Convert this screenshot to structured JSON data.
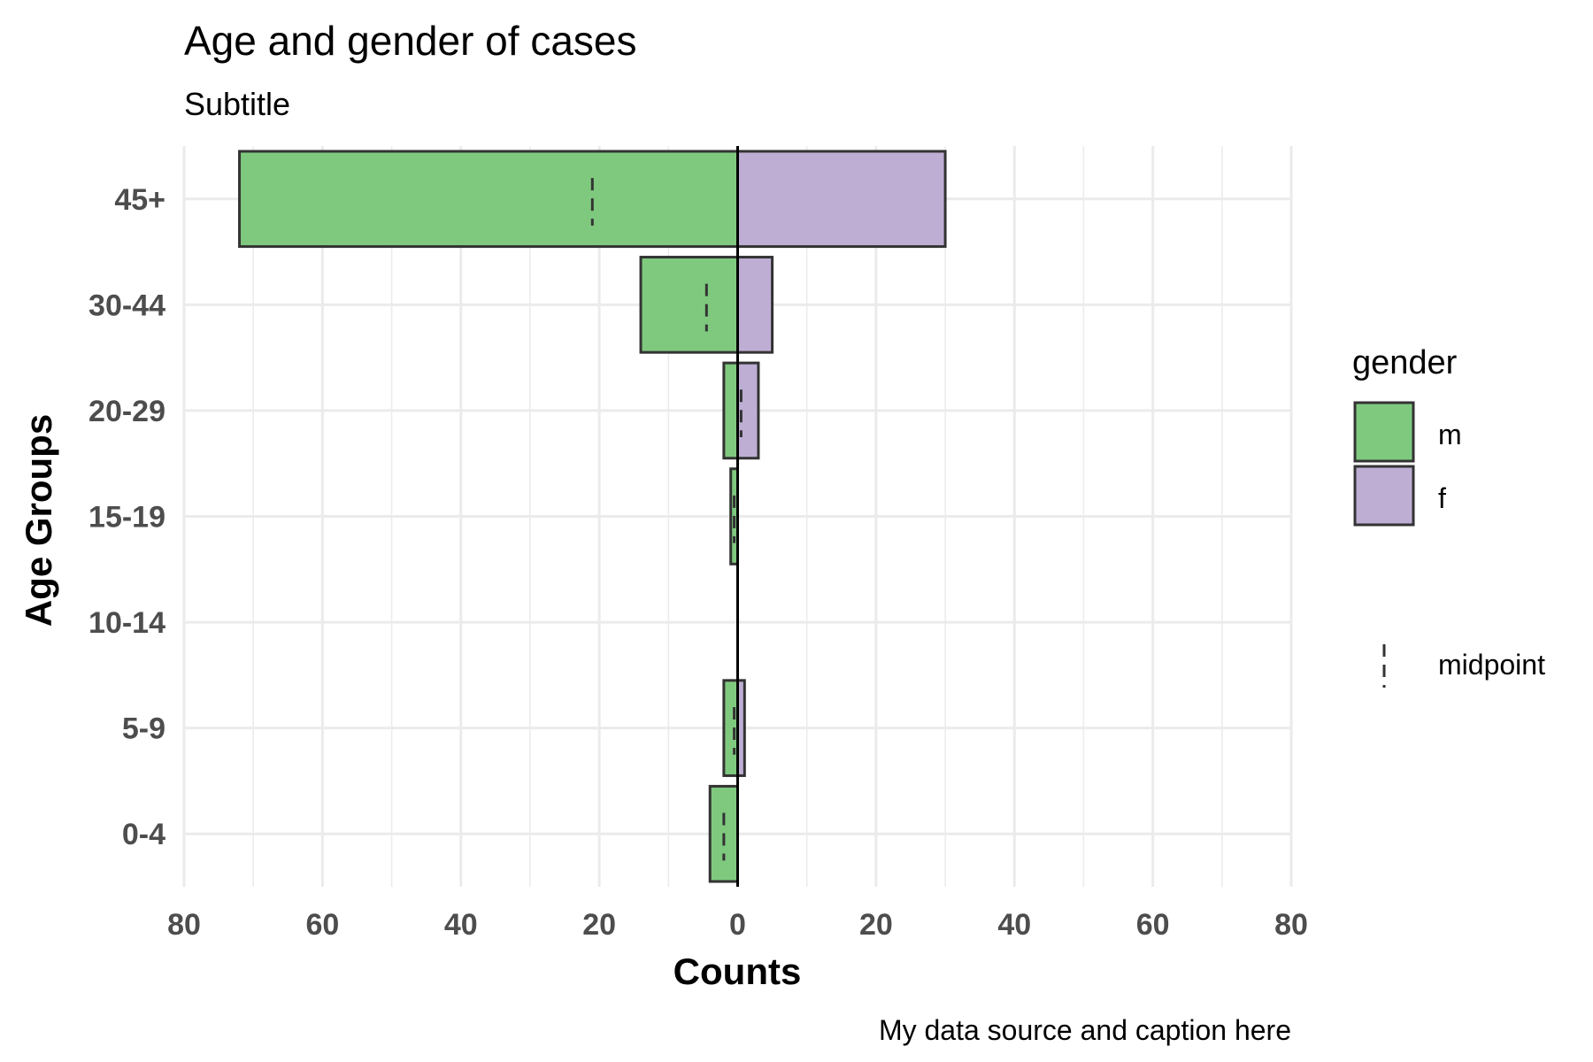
{
  "chart_data": {
    "type": "bar",
    "orientation": "horizontal",
    "title": "Age and gender of cases",
    "subtitle": "Subtitle",
    "caption": "My data source and caption here",
    "xlabel": "Counts",
    "ylabel": "Age Groups",
    "categories": [
      "0-4",
      "5-9",
      "10-14",
      "15-19",
      "20-29",
      "30-44",
      "45+"
    ],
    "series": [
      {
        "name": "m",
        "color": "#7fc97f",
        "values": [
          -4,
          -2,
          0,
          -1,
          -2,
          -14,
          -72
        ]
      },
      {
        "name": "f",
        "color": "#beaed4",
        "values": [
          0,
          1,
          0,
          0,
          3,
          5,
          30
        ]
      }
    ],
    "midpoint": {
      "name": "midpoint",
      "values": [
        -2,
        -0.5,
        null,
        -0.5,
        0.5,
        -4.5,
        -21
      ]
    },
    "xlim": [
      -80,
      80
    ],
    "xticks": [
      -80,
      -60,
      -40,
      -20,
      0,
      20,
      40,
      60,
      80
    ],
    "xtick_labels": [
      "80",
      "60",
      "40",
      "20",
      "0",
      "20",
      "40",
      "60",
      "80"
    ],
    "legend": {
      "title": "gender",
      "placement": "right"
    },
    "grid": true,
    "colors": {
      "bar_outline": "#333333",
      "grid": "#ebebeb",
      "zero_line": "#000000"
    }
  }
}
